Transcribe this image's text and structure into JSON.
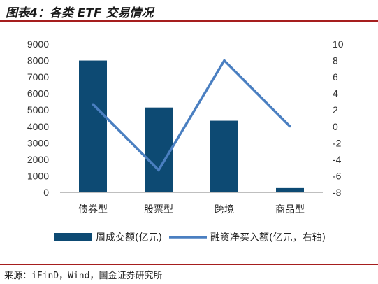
{
  "title": "图表4：各类 ETF 交易情况",
  "source": "来源：iFinD，Wind，国金证券研究所",
  "chart_data": {
    "type": "bar+line",
    "categories": [
      "债券型",
      "股票型",
      "跨境",
      "商品型"
    ],
    "series": [
      {
        "name": "周成交额(亿元)",
        "type": "bar",
        "axis": "left",
        "color": "#0d4a73",
        "values": [
          8000,
          5150,
          4350,
          260
        ]
      },
      {
        "name": "融资净买入额(亿元，右轴)",
        "type": "line",
        "axis": "right",
        "color": "#4a7fc1",
        "values": [
          2.7,
          -5.3,
          8.0,
          0.0
        ]
      }
    ],
    "y_left": {
      "min": 0,
      "max": 9000,
      "step": 1000,
      "ticks": [
        "0",
        "1000",
        "2000",
        "3000",
        "4000",
        "5000",
        "6000",
        "7000",
        "8000",
        "9000"
      ]
    },
    "y_right": {
      "min": -8,
      "max": 10,
      "step": 2,
      "ticks": [
        "-8",
        "-6",
        "-4",
        "-2",
        "0",
        "2",
        "4",
        "6",
        "8",
        "10"
      ]
    },
    "legend_position": "bottom",
    "grid": false
  }
}
